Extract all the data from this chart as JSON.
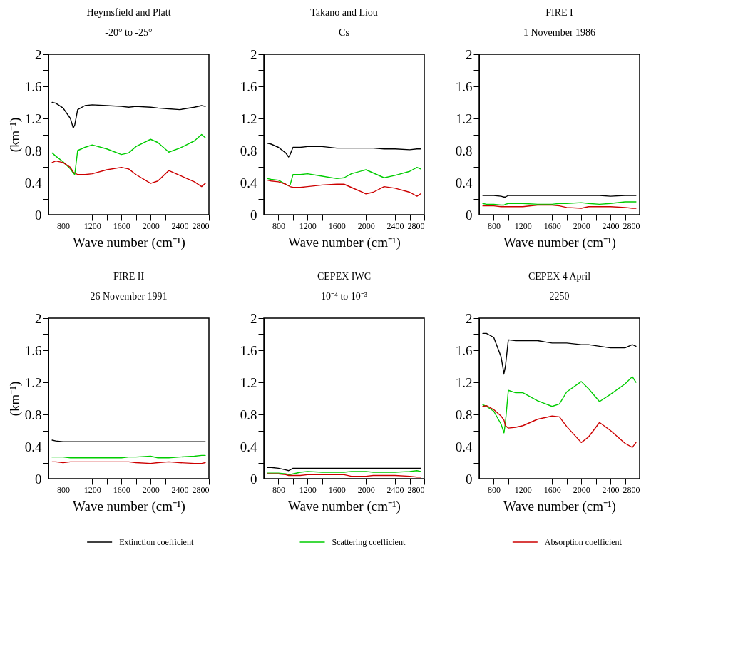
{
  "chart_data": [
    {
      "type": "line",
      "title": "Heymsfield and Platt",
      "subtitle": "-20° to -25°",
      "xlabel": "Wave number (cm⁻¹)",
      "ylabel": "(km⁻¹)",
      "legend": "bottom",
      "x": [
        650,
        700,
        800,
        900,
        940,
        960,
        1000,
        1100,
        1200,
        1400,
        1600,
        1700,
        1800,
        2000,
        2100,
        2250,
        2400,
        2600,
        2700,
        2750
      ],
      "xlim": [
        600,
        2800
      ],
      "xticks": [
        800,
        {
          "value": 1000,
          "label": null
        },
        1200,
        {
          "value": 1400,
          "label": null
        },
        1600,
        {
          "value": 1800,
          "label": null
        },
        2000,
        {
          "value": 2200,
          "label": null
        },
        2400,
        {
          "value": 2600,
          "label": null
        },
        2800
      ],
      "ylim": [
        0,
        2
      ],
      "yticks": [
        0,
        {
          "value": 0.2,
          "label": null
        },
        0.4,
        {
          "value": 0.6,
          "label": null
        },
        0.8,
        {
          "value": 1.0,
          "label": null
        },
        1.2,
        {
          "value": 1.4,
          "label": null
        },
        1.6,
        {
          "value": 1.8,
          "label": null
        },
        2
      ],
      "series": [
        {
          "name": "Extinction coefficient",
          "color": "#000000",
          "values": [
            1.4,
            1.39,
            1.33,
            1.2,
            1.08,
            1.12,
            1.31,
            1.36,
            1.37,
            1.36,
            1.35,
            1.34,
            1.35,
            1.34,
            1.33,
            1.32,
            1.31,
            1.34,
            1.36,
            1.35
          ]
        },
        {
          "name": "Scattering coefficient",
          "color": "#00cc00",
          "values": [
            0.77,
            0.73,
            0.66,
            0.57,
            0.52,
            0.5,
            0.8,
            0.84,
            0.87,
            0.82,
            0.75,
            0.77,
            0.85,
            0.94,
            0.9,
            0.78,
            0.83,
            0.92,
            1.0,
            0.96
          ]
        },
        {
          "name": "Absorption coefficient",
          "color": "#cc0000",
          "values": [
            0.65,
            0.67,
            0.65,
            0.59,
            0.53,
            0.52,
            0.5,
            0.5,
            0.51,
            0.56,
            0.59,
            0.57,
            0.5,
            0.39,
            0.42,
            0.55,
            0.49,
            0.41,
            0.35,
            0.39
          ]
        }
      ]
    },
    {
      "type": "line",
      "title": "Takano and Liou",
      "subtitle": "Cs",
      "xlabel": "Wave number (cm⁻¹)",
      "x": [
        650,
        700,
        800,
        900,
        940,
        960,
        1000,
        1100,
        1200,
        1400,
        1600,
        1700,
        1800,
        2000,
        2100,
        2250,
        2400,
        2600,
        2700,
        2750
      ],
      "xlim": [
        600,
        2800
      ],
      "xticks": [
        800,
        {
          "value": 1000,
          "label": null
        },
        1200,
        {
          "value": 1400,
          "label": null
        },
        1600,
        {
          "value": 1800,
          "label": null
        },
        2000,
        {
          "value": 2200,
          "label": null
        },
        2400,
        {
          "value": 2600,
          "label": null
        },
        2800
      ],
      "ylim": [
        0,
        2
      ],
      "yticks": [
        0,
        {
          "value": 0.2,
          "label": null
        },
        0.4,
        {
          "value": 0.6,
          "label": null
        },
        0.8,
        {
          "value": 1.0,
          "label": null
        },
        1.2,
        {
          "value": 1.4,
          "label": null
        },
        1.6,
        {
          "value": 1.8,
          "label": null
        },
        2
      ],
      "series": [
        {
          "color": "#000000",
          "values": [
            0.89,
            0.88,
            0.84,
            0.77,
            0.72,
            0.75,
            0.84,
            0.84,
            0.85,
            0.85,
            0.83,
            0.83,
            0.83,
            0.83,
            0.83,
            0.82,
            0.82,
            0.81,
            0.82,
            0.82
          ]
        },
        {
          "color": "#00cc00",
          "values": [
            0.45,
            0.44,
            0.43,
            0.38,
            0.36,
            0.37,
            0.5,
            0.5,
            0.51,
            0.48,
            0.45,
            0.46,
            0.51,
            0.56,
            0.52,
            0.46,
            0.49,
            0.54,
            0.59,
            0.57
          ]
        },
        {
          "color": "#cc0000",
          "values": [
            0.43,
            0.42,
            0.41,
            0.38,
            0.36,
            0.35,
            0.34,
            0.34,
            0.35,
            0.37,
            0.38,
            0.38,
            0.34,
            0.26,
            0.28,
            0.35,
            0.33,
            0.28,
            0.23,
            0.26
          ]
        }
      ]
    },
    {
      "type": "line",
      "title": "FIRE I",
      "subtitle": "1 November 1986",
      "xlabel": "Wave number (cm⁻¹)",
      "x": [
        650,
        700,
        800,
        900,
        940,
        960,
        1000,
        1100,
        1200,
        1400,
        1600,
        1700,
        1800,
        2000,
        2100,
        2250,
        2400,
        2600,
        2700,
        2750
      ],
      "xlim": [
        600,
        2800
      ],
      "xticks": [
        800,
        {
          "value": 1000,
          "label": null
        },
        1200,
        {
          "value": 1400,
          "label": null
        },
        1600,
        {
          "value": 1800,
          "label": null
        },
        2000,
        {
          "value": 2200,
          "label": null
        },
        2400,
        {
          "value": 2600,
          "label": null
        },
        2800
      ],
      "ylim": [
        0,
        2
      ],
      "yticks": [
        0,
        {
          "value": 0.2,
          "label": null
        },
        0.4,
        {
          "value": 0.6,
          "label": null
        },
        0.8,
        {
          "value": 1.0,
          "label": null
        },
        1.2,
        {
          "value": 1.4,
          "label": null
        },
        1.6,
        {
          "value": 1.8,
          "label": null
        },
        2
      ],
      "series": [
        {
          "color": "#000000",
          "values": [
            0.24,
            0.24,
            0.24,
            0.23,
            0.22,
            0.22,
            0.24,
            0.24,
            0.24,
            0.24,
            0.24,
            0.24,
            0.24,
            0.24,
            0.24,
            0.24,
            0.23,
            0.24,
            0.24,
            0.24
          ]
        },
        {
          "color": "#00cc00",
          "values": [
            0.14,
            0.13,
            0.13,
            0.12,
            0.12,
            0.13,
            0.14,
            0.14,
            0.14,
            0.13,
            0.13,
            0.14,
            0.14,
            0.15,
            0.14,
            0.13,
            0.14,
            0.16,
            0.16,
            0.16
          ]
        },
        {
          "color": "#cc0000",
          "values": [
            0.11,
            0.11,
            0.11,
            0.1,
            0.1,
            0.1,
            0.1,
            0.1,
            0.1,
            0.12,
            0.12,
            0.11,
            0.09,
            0.08,
            0.1,
            0.1,
            0.1,
            0.09,
            0.08,
            0.08
          ]
        }
      ]
    },
    {
      "type": "line",
      "title": "FIRE II",
      "subtitle": "26 November 1991",
      "xlabel": "Wave number (cm⁻¹)",
      "ylabel": "(km⁻¹)",
      "x": [
        650,
        700,
        800,
        900,
        940,
        960,
        1000,
        1100,
        1200,
        1400,
        1600,
        1700,
        1800,
        2000,
        2100,
        2250,
        2400,
        2600,
        2700,
        2750
      ],
      "xlim": [
        600,
        2800
      ],
      "xticks": [
        800,
        {
          "value": 1000,
          "label": null
        },
        1200,
        {
          "value": 1400,
          "label": null
        },
        1600,
        {
          "value": 1800,
          "label": null
        },
        2000,
        {
          "value": 2200,
          "label": null
        },
        2400,
        {
          "value": 2600,
          "label": null
        },
        2800
      ],
      "ylim": [
        0,
        2
      ],
      "yticks": [
        0,
        {
          "value": 0.2,
          "label": null
        },
        0.4,
        {
          "value": 0.6,
          "label": null
        },
        0.8,
        {
          "value": 1.0,
          "label": null
        },
        1.2,
        {
          "value": 1.4,
          "label": null
        },
        1.6,
        {
          "value": 1.8,
          "label": null
        },
        2
      ],
      "series": [
        {
          "color": "#000000",
          "values": [
            0.48,
            0.47,
            0.46,
            0.46,
            0.46,
            0.46,
            0.46,
            0.46,
            0.46,
            0.46,
            0.46,
            0.46,
            0.46,
            0.46,
            0.46,
            0.46,
            0.46,
            0.46,
            0.46,
            0.46
          ]
        },
        {
          "color": "#00cc00",
          "values": [
            0.27,
            0.27,
            0.27,
            0.26,
            0.26,
            0.26,
            0.26,
            0.26,
            0.26,
            0.26,
            0.26,
            0.27,
            0.27,
            0.28,
            0.26,
            0.26,
            0.27,
            0.28,
            0.29,
            0.29
          ]
        },
        {
          "color": "#cc0000",
          "values": [
            0.21,
            0.21,
            0.2,
            0.21,
            0.21,
            0.21,
            0.21,
            0.21,
            0.21,
            0.21,
            0.21,
            0.21,
            0.2,
            0.19,
            0.2,
            0.21,
            0.2,
            0.19,
            0.19,
            0.2
          ]
        }
      ]
    },
    {
      "type": "line",
      "title": "CEPEX IWC",
      "subtitle": "10⁻⁴ to 10⁻³",
      "xlabel": "Wave number (cm⁻¹)",
      "x": [
        650,
        700,
        800,
        900,
        940,
        960,
        1000,
        1100,
        1200,
        1400,
        1600,
        1700,
        1800,
        2000,
        2100,
        2250,
        2400,
        2600,
        2700,
        2750
      ],
      "xlim": [
        600,
        2800
      ],
      "xticks": [
        800,
        {
          "value": 1000,
          "label": null
        },
        1200,
        {
          "value": 1400,
          "label": null
        },
        1600,
        {
          "value": 1800,
          "label": null
        },
        2000,
        {
          "value": 2200,
          "label": null
        },
        2400,
        {
          "value": 2600,
          "label": null
        },
        2800
      ],
      "ylim": [
        0,
        2
      ],
      "yticks": [
        0,
        {
          "value": 0.2,
          "label": null
        },
        0.4,
        {
          "value": 0.6,
          "label": null
        },
        0.8,
        {
          "value": 1.0,
          "label": null
        },
        1.2,
        {
          "value": 1.4,
          "label": null
        },
        1.6,
        {
          "value": 1.8,
          "label": null
        },
        2
      ],
      "series": [
        {
          "color": "#000000",
          "values": [
            0.14,
            0.14,
            0.13,
            0.11,
            0.1,
            0.11,
            0.13,
            0.13,
            0.13,
            0.13,
            0.13,
            0.13,
            0.13,
            0.13,
            0.13,
            0.13,
            0.13,
            0.13,
            0.13,
            0.13
          ]
        },
        {
          "color": "#00cc00",
          "values": [
            0.07,
            0.07,
            0.07,
            0.06,
            0.05,
            0.05,
            0.06,
            0.08,
            0.09,
            0.08,
            0.08,
            0.08,
            0.09,
            0.09,
            0.08,
            0.08,
            0.08,
            0.09,
            0.1,
            0.09
          ]
        },
        {
          "color": "#cc0000",
          "values": [
            0.06,
            0.06,
            0.06,
            0.05,
            0.04,
            0.04,
            0.04,
            0.04,
            0.05,
            0.05,
            0.05,
            0.05,
            0.03,
            0.03,
            0.04,
            0.04,
            0.04,
            0.03,
            0.02,
            0.02
          ]
        }
      ]
    },
    {
      "type": "line",
      "title": "CEPEX 4 April",
      "subtitle": "2250",
      "xlabel": "Wave number (cm⁻¹)",
      "x": [
        650,
        700,
        800,
        900,
        940,
        960,
        1000,
        1100,
        1200,
        1400,
        1600,
        1700,
        1800,
        2000,
        2100,
        2250,
        2400,
        2600,
        2700,
        2750
      ],
      "xlim": [
        600,
        2800
      ],
      "xticks": [
        800,
        {
          "value": 1000,
          "label": null
        },
        1200,
        {
          "value": 1400,
          "label": null
        },
        1600,
        {
          "value": 1800,
          "label": null
        },
        2000,
        {
          "value": 2200,
          "label": null
        },
        2400,
        {
          "value": 2600,
          "label": null
        },
        2800
      ],
      "ylim": [
        0,
        2
      ],
      "yticks": [
        0,
        {
          "value": 0.2,
          "label": null
        },
        0.4,
        {
          "value": 0.6,
          "label": null
        },
        0.8,
        {
          "value": 1.0,
          "label": null
        },
        1.2,
        {
          "value": 1.4,
          "label": null
        },
        1.6,
        {
          "value": 1.8,
          "label": null
        },
        2
      ],
      "series": [
        {
          "color": "#000000",
          "values": [
            1.81,
            1.81,
            1.76,
            1.52,
            1.31,
            1.4,
            1.73,
            1.72,
            1.72,
            1.72,
            1.69,
            1.69,
            1.69,
            1.67,
            1.67,
            1.65,
            1.63,
            1.63,
            1.67,
            1.65
          ]
        },
        {
          "color": "#00cc00",
          "values": [
            0.92,
            0.9,
            0.84,
            0.68,
            0.57,
            0.7,
            1.1,
            1.07,
            1.07,
            0.97,
            0.9,
            0.93,
            1.08,
            1.21,
            1.12,
            0.96,
            1.05,
            1.18,
            1.27,
            1.2
          ]
        },
        {
          "color": "#cc0000",
          "values": [
            0.9,
            0.91,
            0.86,
            0.78,
            0.73,
            0.66,
            0.63,
            0.64,
            0.66,
            0.74,
            0.78,
            0.77,
            0.65,
            0.45,
            0.52,
            0.7,
            0.6,
            0.44,
            0.39,
            0.45
          ]
        }
      ]
    }
  ]
}
